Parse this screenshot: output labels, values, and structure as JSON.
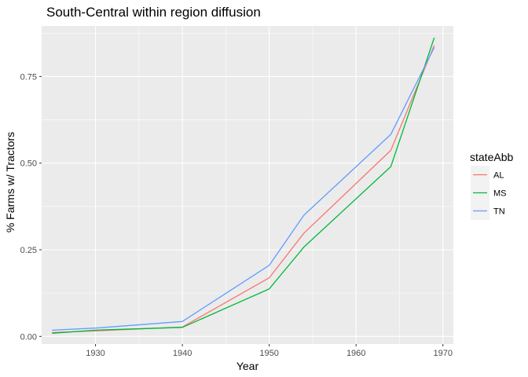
{
  "chart_data": {
    "type": "line",
    "title": "South-Central within region diffusion",
    "xlabel": "Year",
    "ylabel": "% Farms w/ Tractors",
    "xlim": [
      1923.8,
      1971.2
    ],
    "ylim": [
      -0.022,
      0.896
    ],
    "x_ticks": [
      1930,
      1940,
      1950,
      1960,
      1970
    ],
    "x_tick_labels": [
      "1930",
      "1940",
      "1950",
      "1960",
      "1970"
    ],
    "y_ticks": [
      0.0,
      0.25,
      0.5,
      0.75
    ],
    "y_tick_labels": [
      "0.00",
      "0.25",
      "0.50",
      "0.75"
    ],
    "grid": true,
    "legend": {
      "title": "stateAbb",
      "placement": "right"
    },
    "series": [
      {
        "name": "AL",
        "color": "#F8766D",
        "x": [
          1925,
          1930,
          1940,
          1950,
          1954,
          1964,
          1969
        ],
        "y": [
          0.011,
          0.016,
          0.027,
          0.169,
          0.298,
          0.537,
          0.84
        ]
      },
      {
        "name": "MS",
        "color": "#00BA38",
        "x": [
          1925,
          1930,
          1940,
          1950,
          1954,
          1964,
          1969
        ],
        "y": [
          0.009,
          0.018,
          0.026,
          0.137,
          0.258,
          0.49,
          0.862
        ]
      },
      {
        "name": "TN",
        "color": "#619CFF",
        "x": [
          1925,
          1930,
          1940,
          1950,
          1954,
          1964,
          1969
        ],
        "y": [
          0.018,
          0.024,
          0.043,
          0.205,
          0.35,
          0.583,
          0.834
        ]
      }
    ]
  }
}
